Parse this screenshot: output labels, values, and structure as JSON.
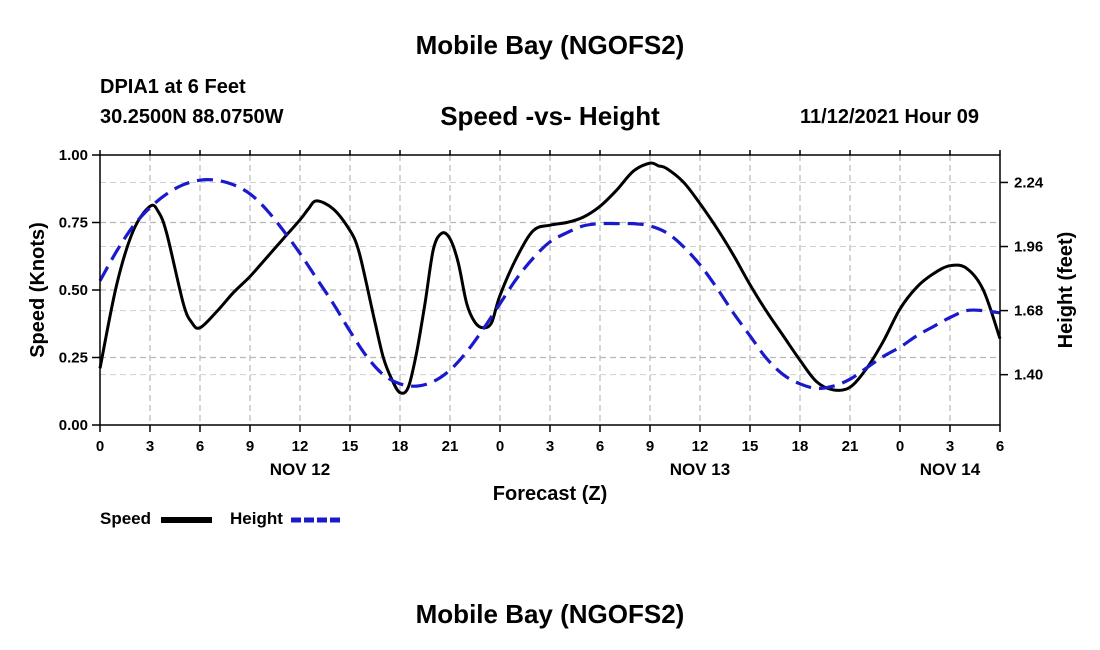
{
  "header": {
    "title": "Mobile Bay (NGOFS2)",
    "station": "DPIA1 at 6 Feet",
    "coords": "30.2500N  88.0750W",
    "subtitle": "Speed -vs- Height",
    "datetime": "11/12/2021 Hour 09",
    "footer_title": "Mobile Bay (NGOFS2)"
  },
  "chart_data": {
    "type": "line",
    "title": "Speed -vs- Height",
    "xlabel": "Forecast (Z)",
    "ylabel": "Speed (Knots)",
    "y2label": "Height (feet)",
    "xlim": [
      0,
      54
    ],
    "ylim": [
      0,
      1.0
    ],
    "y2lim": [
      1.18,
      2.36
    ],
    "x_tick_values": [
      0,
      3,
      6,
      9,
      12,
      15,
      18,
      21,
      24,
      27,
      30,
      33,
      36,
      39,
      42,
      45,
      48,
      51,
      54
    ],
    "x_tick_labels": [
      "0",
      "3",
      "6",
      "9",
      "12",
      "15",
      "18",
      "21",
      "0",
      "3",
      "6",
      "9",
      "12",
      "15",
      "18",
      "21",
      "0",
      "3",
      "6"
    ],
    "date_labels": [
      {
        "x": 12,
        "label": "NOV 12"
      },
      {
        "x": 36,
        "label": "NOV 13"
      },
      {
        "x": 51,
        "label": "NOV 14"
      }
    ],
    "y_ticks": [
      0.0,
      0.25,
      0.5,
      0.75,
      1.0
    ],
    "y_tick_labels": [
      "0.00",
      "0.25",
      "0.50",
      "0.75",
      "1.00"
    ],
    "y2_ticks": [
      1.4,
      1.68,
      1.96,
      2.24
    ],
    "y2_tick_labels": [
      "1.40",
      "1.68",
      "1.96",
      "2.24"
    ],
    "grid": true,
    "legend_position": "bottom-left",
    "series": [
      {
        "name": "Speed",
        "axis": "left",
        "color": "#000000",
        "style": "solid",
        "x": [
          0,
          1,
          2,
          3,
          3.5,
          4,
          5,
          5.5,
          6,
          7,
          8,
          9,
          10,
          11,
          12,
          12.5,
          13,
          14,
          15,
          15.5,
          16,
          16.5,
          17,
          17.5,
          18,
          18.5,
          19,
          19.5,
          20,
          20.5,
          21,
          21.5,
          22,
          22.5,
          23,
          23.5,
          24,
          25,
          26,
          27,
          28,
          29,
          30,
          31,
          32,
          33,
          33.5,
          34,
          35,
          36,
          37,
          38,
          39,
          40,
          41,
          42,
          43,
          44,
          45,
          46,
          47,
          48,
          49,
          50,
          51,
          52,
          53,
          54
        ],
        "values": [
          0.21,
          0.52,
          0.72,
          0.81,
          0.79,
          0.71,
          0.45,
          0.38,
          0.36,
          0.42,
          0.49,
          0.55,
          0.62,
          0.69,
          0.76,
          0.8,
          0.83,
          0.8,
          0.72,
          0.65,
          0.52,
          0.38,
          0.25,
          0.17,
          0.12,
          0.14,
          0.27,
          0.45,
          0.65,
          0.71,
          0.69,
          0.6,
          0.45,
          0.38,
          0.36,
          0.38,
          0.48,
          0.62,
          0.72,
          0.74,
          0.75,
          0.77,
          0.81,
          0.87,
          0.94,
          0.97,
          0.96,
          0.95,
          0.9,
          0.82,
          0.73,
          0.63,
          0.52,
          0.42,
          0.33,
          0.24,
          0.16,
          0.13,
          0.14,
          0.21,
          0.31,
          0.43,
          0.51,
          0.56,
          0.59,
          0.58,
          0.5,
          0.32
        ]
      },
      {
        "name": "Height",
        "axis": "right",
        "color": "#1a1acc",
        "style": "dashed",
        "x": [
          0,
          1,
          2,
          3,
          4,
          5,
          6,
          7,
          8,
          9,
          10,
          11,
          12,
          13,
          14,
          15,
          16,
          17,
          18,
          19,
          20,
          21,
          22,
          23,
          24,
          25,
          26,
          27,
          28,
          29,
          30,
          31,
          32,
          33,
          34,
          35,
          36,
          37,
          38,
          39,
          40,
          41,
          42,
          43,
          44,
          45,
          46,
          47,
          48,
          49,
          50,
          51,
          52,
          53,
          54
        ],
        "values": [
          1.81,
          1.94,
          2.05,
          2.13,
          2.19,
          2.23,
          2.25,
          2.25,
          2.23,
          2.19,
          2.12,
          2.03,
          1.93,
          1.82,
          1.71,
          1.59,
          1.48,
          1.4,
          1.36,
          1.35,
          1.37,
          1.42,
          1.5,
          1.6,
          1.71,
          1.82,
          1.91,
          1.98,
          2.02,
          2.05,
          2.06,
          2.06,
          2.06,
          2.05,
          2.02,
          1.96,
          1.88,
          1.78,
          1.67,
          1.57,
          1.47,
          1.4,
          1.36,
          1.34,
          1.35,
          1.38,
          1.43,
          1.48,
          1.52,
          1.57,
          1.61,
          1.65,
          1.68,
          1.68,
          1.67
        ]
      }
    ]
  }
}
